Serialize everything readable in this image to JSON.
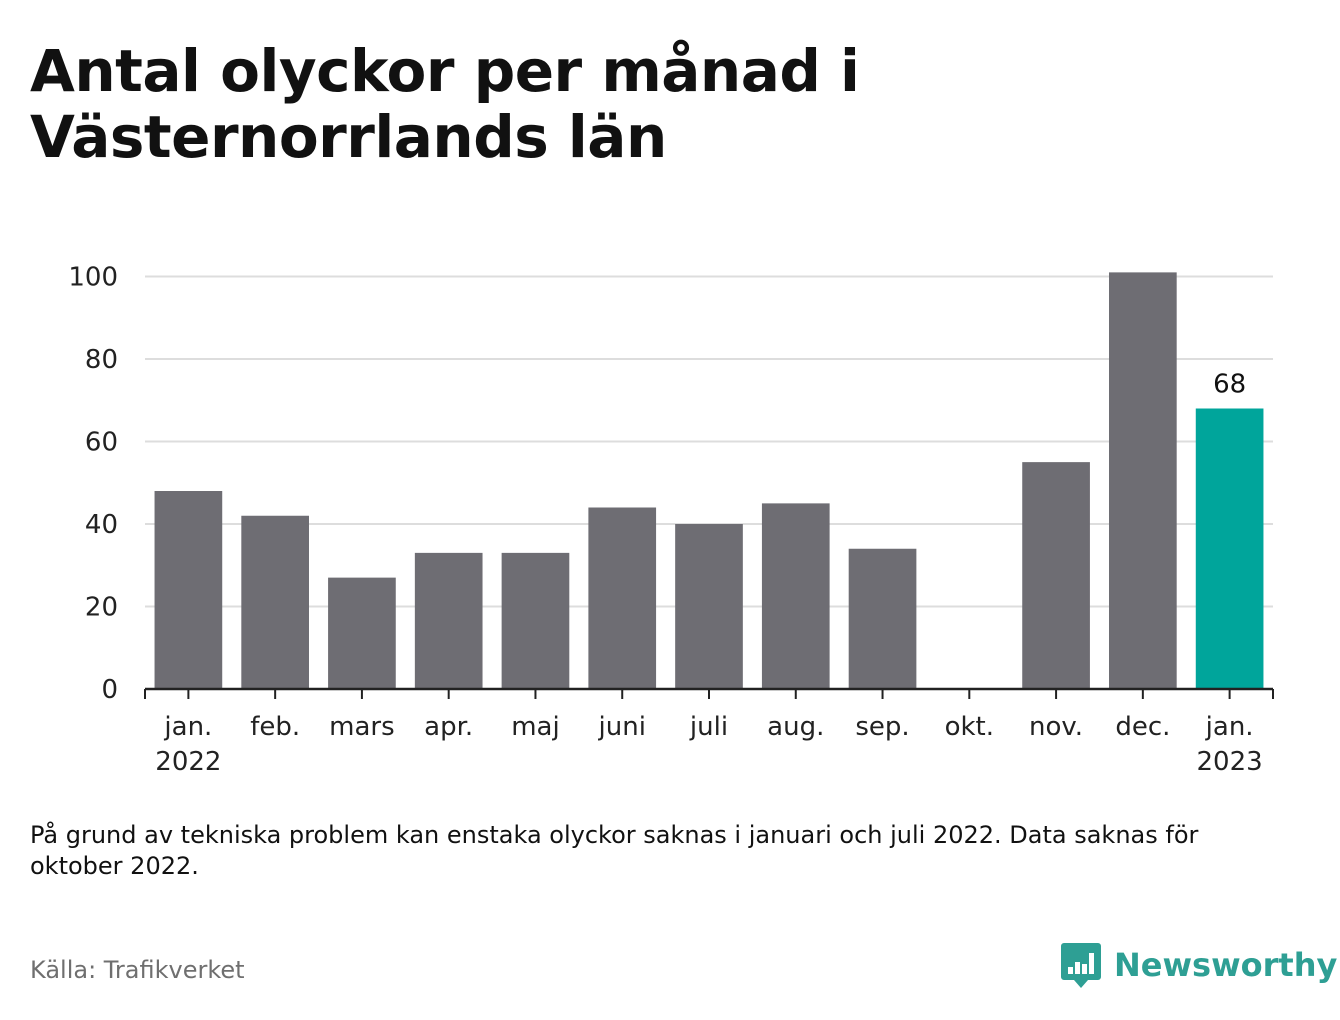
{
  "title": "Antal olyckor per månad i Västernorrlands län",
  "note": "På grund av tekniska problem kan enstaka olyckor saknas i januari och juli 2022. Data saknas för oktober 2022.",
  "source": "Källa: Trafikverket",
  "brand": "Newsworthy",
  "colors": {
    "bar": "#6e6d73",
    "highlight": "#00a59b",
    "grid": "#dddddd",
    "axis": "#222222",
    "brand": "#2e9f94"
  },
  "chart_data": {
    "type": "bar",
    "categories": [
      "jan.",
      "feb.",
      "mars",
      "apr.",
      "maj",
      "juni",
      "juli",
      "aug.",
      "sep.",
      "okt.",
      "nov.",
      "dec.",
      "jan."
    ],
    "category_years": [
      "2022",
      "",
      "",
      "",
      "",
      "",
      "",
      "",
      "",
      "",
      "",
      "",
      "2023"
    ],
    "values": [
      48,
      42,
      27,
      33,
      33,
      44,
      40,
      45,
      34,
      null,
      55,
      101,
      68
    ],
    "highlight_index": 12,
    "data_labels": [
      {
        "index": 12,
        "text": "68"
      }
    ],
    "yticks": [
      0,
      20,
      40,
      60,
      80,
      100
    ],
    "ylim": [
      0,
      101
    ],
    "grid": true,
    "xlabel": "",
    "ylabel": ""
  }
}
